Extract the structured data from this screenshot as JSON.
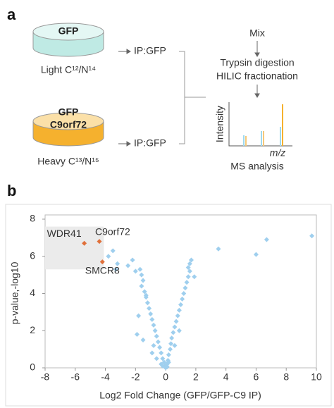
{
  "panel_a": {
    "label": "a",
    "light_dish": "GFP",
    "light_label": "Light C¹²/N¹⁴",
    "heavy_dish": [
      "GFP",
      "C9orf72"
    ],
    "heavy_label": "Heavy C¹³/N¹⁵",
    "ip_light": "IP:GFP",
    "ip_heavy": "IP:GFP",
    "steps": [
      "Mix",
      "Trypsin digestion",
      "HILIC fractionation"
    ],
    "spectrum_y": "Intensity",
    "spectrum_x": "m/z",
    "spectrum_caption": "MS analysis"
  },
  "chart_data": {
    "type": "scatter",
    "panel_label": "b",
    "xlabel": "Log2 Fold Change (GFP/GFP-C9 IP)",
    "ylabel": "p-value,-log10",
    "xlim": [
      -8,
      10
    ],
    "xticks": [
      -8,
      -6,
      -4,
      -2,
      0,
      2,
      4,
      6,
      8,
      10
    ],
    "ylim": [
      0,
      8
    ],
    "yticks": [
      0,
      2,
      4,
      6,
      8
    ],
    "shaded_region": {
      "x": [
        -8,
        -4.1
      ],
      "y": [
        5.3,
        7.6
      ]
    },
    "series": [
      {
        "color": "#9fcfee",
        "x": [
          9.7,
          6.7,
          6.0,
          3.5,
          1.7,
          1.6,
          1.5,
          1.6,
          1.5,
          1.4,
          1.3,
          1.2,
          1.1,
          1.0,
          0.9,
          0.8,
          0.7,
          0.6,
          0.5,
          0.4,
          0.35,
          0.3,
          0.2,
          0.15,
          0.1,
          0.05,
          1.9,
          0.9,
          0.6,
          -3.5,
          -3.8,
          -3.2,
          -3.3,
          -2.5,
          -2.2,
          -1.7,
          -1.6,
          -1.5,
          -1.6,
          -1.4,
          -1.3,
          -1.2,
          -1.1,
          -1.0,
          -0.9,
          -0.8,
          -0.7,
          -0.6,
          -0.5,
          -0.4,
          -0.3,
          -0.2,
          -0.1,
          -0.05,
          0,
          -1.8,
          -1.9,
          -1.5,
          -0.9,
          -0.6,
          -2.0,
          -1.3,
          -0.8,
          -0.3,
          0.2,
          -0.2,
          0.1
        ],
        "y": [
          7.1,
          6.9,
          6.1,
          6.4,
          5.8,
          5.6,
          5.4,
          5.2,
          4.9,
          4.6,
          4.3,
          4.0,
          3.7,
          3.4,
          3.1,
          2.8,
          2.5,
          2.2,
          1.9,
          1.6,
          1.3,
          1.0,
          0.7,
          0.4,
          0.2,
          0.1,
          4.9,
          2.0,
          1.2,
          6.3,
          6.0,
          5.6,
          5.3,
          5.5,
          5.8,
          5.3,
          5.0,
          4.7,
          4.4,
          4.1,
          3.8,
          3.5,
          3.2,
          2.9,
          2.6,
          2.3,
          2.0,
          1.7,
          1.4,
          1.1,
          0.8,
          0.5,
          0.3,
          0.1,
          0,
          2.8,
          1.8,
          1.5,
          0.8,
          0.5,
          5.2,
          3.9,
          1.2,
          0.2,
          0.3,
          0.1,
          0.05
        ]
      },
      {
        "color": "#e0703a",
        "x": [
          -5.4,
          -4.4,
          -4.2
        ],
        "y": [
          6.7,
          6.8,
          5.7
        ],
        "point_labels": [
          "WDR41",
          "C9orf72",
          "SMCR8"
        ]
      }
    ]
  }
}
